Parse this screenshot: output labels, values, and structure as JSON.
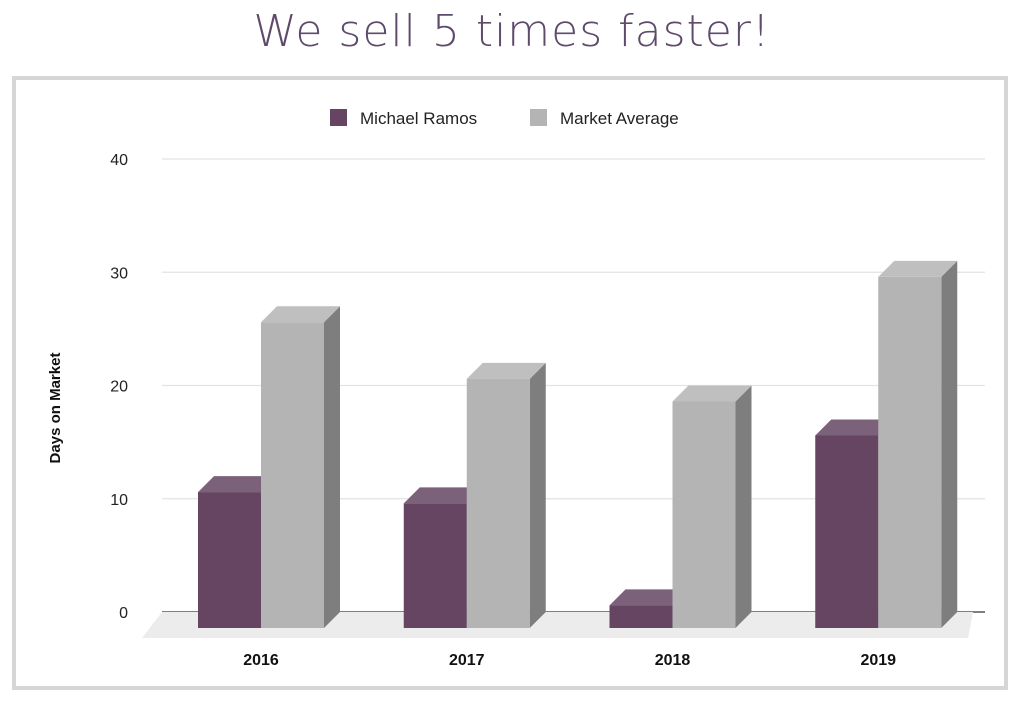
{
  "headline": "We sell 5 times faster!",
  "chart_data": {
    "type": "bar",
    "style": "3d-column",
    "categories": [
      "2016",
      "2017",
      "2018",
      "2019"
    ],
    "series": [
      {
        "name": "Michael Ramos",
        "color": "#654562",
        "values": [
          12,
          11,
          2,
          17
        ]
      },
      {
        "name": "Market Average",
        "color": "#b4b4b4",
        "values": [
          27,
          22,
          20,
          31
        ]
      }
    ],
    "ylabel": "Days on Market",
    "xlabel": "",
    "ylim": [
      0,
      40
    ],
    "yticks": [
      0,
      10,
      20,
      30,
      40
    ],
    "grid": true,
    "legend": "top-center"
  }
}
